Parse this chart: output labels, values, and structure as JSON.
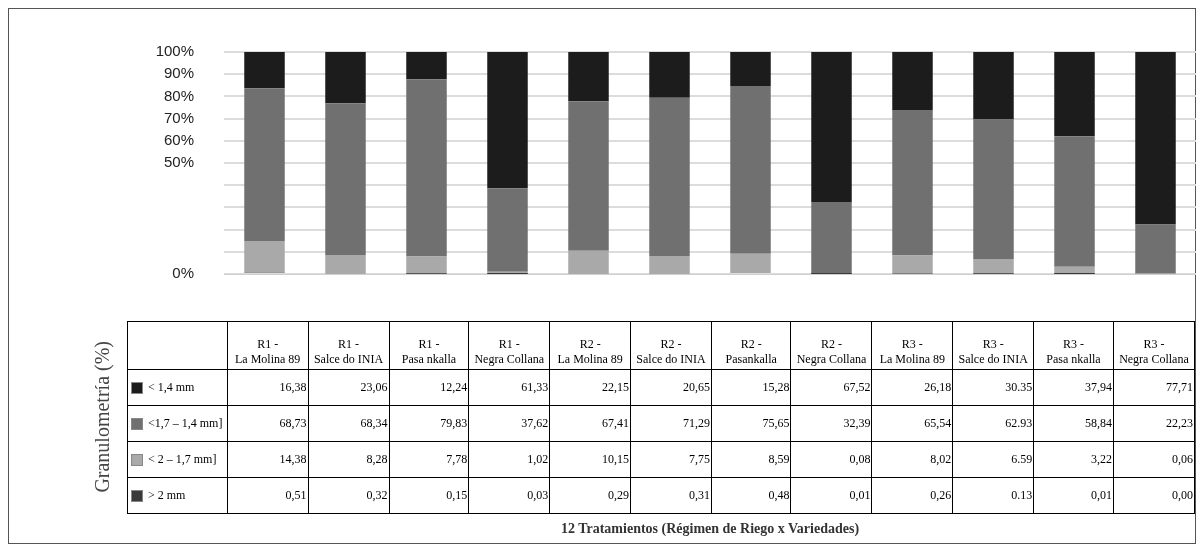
{
  "chart_data": {
    "type": "bar",
    "stacked": true,
    "ylabel": "Granulometría (%)",
    "annotations": [
      "12 Tratamientos (Régimen de Riego x Variedades)"
    ],
    "categories": [
      "R1 - La Molina 89",
      "R1 - Salce do INIA",
      "R1 - Pasa nkalla",
      "R1 - Negra Collana",
      "R2 - La Molina 89",
      "R2 - Salce do INIA",
      "R2 - Pasankalla",
      "R2 - Negra Collana",
      "R3 - La Molina 89",
      "R3 - Salce do INIA",
      "R3 - Pasa nkalla",
      "R3 - Negra Collana"
    ],
    "series": [
      {
        "name": "> 2 mm",
        "color": "#3a3a3a",
        "values": [
          0.51,
          0.32,
          0.15,
          0.03,
          0.29,
          0.31,
          0.48,
          0.01,
          0.26,
          0.13,
          0.01,
          0.0
        ],
        "value_labels": [
          "0,51",
          "0,32",
          "0,15",
          "0,03",
          "0,29",
          "0,31",
          "0,48",
          "0,01",
          "0,26",
          "0.13",
          "0,01",
          "0,00"
        ]
      },
      {
        "name": "< 2 – 1,7 mm]",
        "color": "#a9a9a9",
        "values": [
          14.38,
          8.28,
          7.78,
          1.02,
          10.15,
          7.75,
          8.59,
          0.08,
          8.02,
          6.59,
          3.22,
          0.06
        ],
        "value_labels": [
          "14,38",
          "8,28",
          "7,78",
          "1,02",
          "10,15",
          "7,75",
          "8,59",
          "0,08",
          "8,02",
          "6.59",
          "3,22",
          "0,06"
        ]
      },
      {
        "name": "<1,7 – 1,4 mm]",
        "color": "#707070",
        "values": [
          68.73,
          68.34,
          79.83,
          37.62,
          67.41,
          71.29,
          75.65,
          32.39,
          65.54,
          62.93,
          58.84,
          22.23
        ],
        "value_labels": [
          "68,73",
          "68,34",
          "79,83",
          "37,62",
          "67,41",
          "71,29",
          "75,65",
          "32,39",
          "65,54",
          "62.93",
          "58,84",
          "22,23"
        ]
      },
      {
        "name": "< 1,4 mm",
        "color": "#1c1c1c",
        "values": [
          16.38,
          23.06,
          12.24,
          61.33,
          22.15,
          20.65,
          15.28,
          67.52,
          26.18,
          30.35,
          37.94,
          77.71
        ],
        "value_labels": [
          "16,38",
          "23,06",
          "12,24",
          "61,33",
          "22,15",
          "20,65",
          "15,28",
          "67,52",
          "26,18",
          "30.35",
          "37,94",
          "77,71"
        ]
      }
    ],
    "ylim": [
      0,
      100
    ],
    "yticks": [
      {
        "value": 0,
        "label": "0%"
      },
      {
        "value": 10,
        "label": null
      },
      {
        "value": 20,
        "label": null
      },
      {
        "value": 30,
        "label": null
      },
      {
        "value": 40,
        "label": null
      },
      {
        "value": 50,
        "label": "50%"
      },
      {
        "value": 60,
        "label": "60%"
      },
      {
        "value": 70,
        "label": "70%"
      },
      {
        "value": 80,
        "label": "80%"
      },
      {
        "value": 90,
        "label": "90%"
      },
      {
        "value": 100,
        "label": "100%"
      }
    ],
    "grid": "y",
    "legend": "left"
  }
}
